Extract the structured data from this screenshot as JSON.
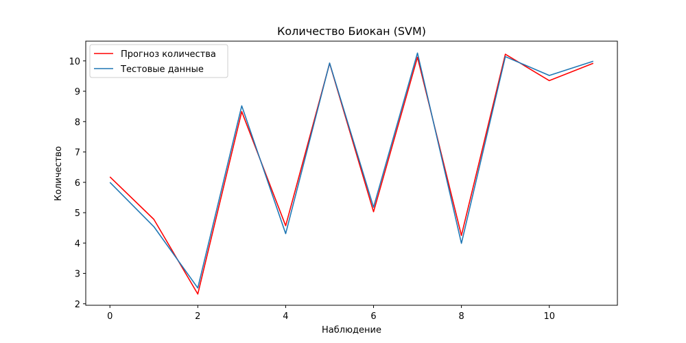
{
  "chart_data": {
    "type": "line",
    "title": "Количество Биокан  (SVM)",
    "xlabel": "Наблюдение",
    "ylabel": "Количество",
    "x": [
      0,
      1,
      2,
      3,
      4,
      5,
      6,
      7,
      8,
      9,
      10,
      11
    ],
    "xlim": [
      -0.55,
      11.55
    ],
    "ylim": [
      1.95,
      10.65
    ],
    "xticks": [
      0,
      2,
      4,
      6,
      8,
      10
    ],
    "yticks": [
      2,
      3,
      4,
      5,
      6,
      7,
      8,
      9,
      10
    ],
    "grid": false,
    "legend_position": "top-left",
    "series": [
      {
        "name": "Прогноз количества",
        "color": "#ff0000",
        "values": [
          6.18,
          4.78,
          2.32,
          8.33,
          4.57,
          9.92,
          5.03,
          10.12,
          4.25,
          10.22,
          9.35,
          9.92
        ]
      },
      {
        "name": "Тестовые данные",
        "color": "#1f77b4",
        "values": [
          6.0,
          4.54,
          2.52,
          8.52,
          4.31,
          9.93,
          5.18,
          10.26,
          3.99,
          10.14,
          9.52,
          9.99
        ]
      }
    ]
  }
}
